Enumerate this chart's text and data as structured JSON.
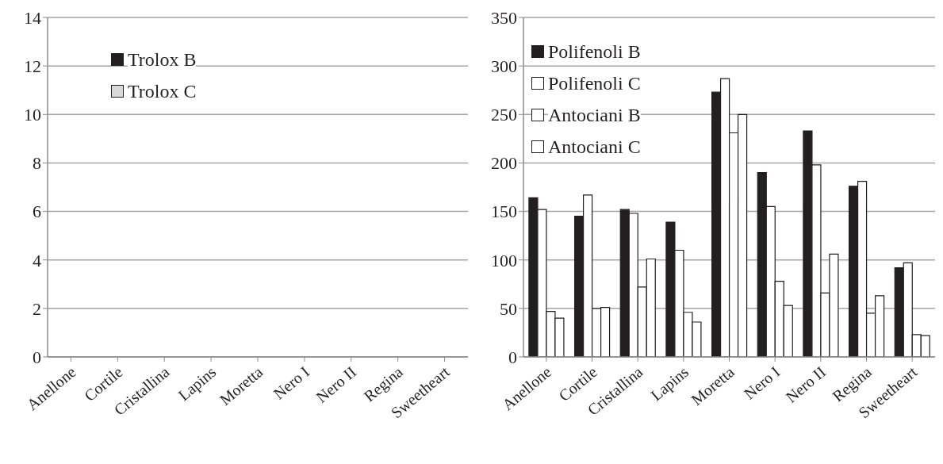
{
  "chart_data": [
    {
      "type": "bar",
      "categories": [
        "Anellone",
        "Cortile",
        "Cristallina",
        "Lapins",
        "Moretta",
        "Nero I",
        "Nero II",
        "Regina",
        "Sweetheart"
      ],
      "series": [
        {
          "name": "Trolox B",
          "color": "#231f20",
          "values": [
            null,
            null,
            null,
            null,
            null,
            null,
            null,
            null,
            null
          ]
        },
        {
          "name": "Trolox C",
          "color": "#d9d9d9",
          "values": [
            null,
            null,
            null,
            null,
            null,
            null,
            null,
            null,
            null
          ]
        }
      ],
      "ylim": [
        0,
        14
      ],
      "yticks": [
        0,
        2,
        4,
        6,
        8,
        10,
        12,
        14
      ],
      "grid": "y",
      "legend": "top left"
    },
    {
      "type": "bar",
      "categories": [
        "Anellone",
        "Cortile",
        "Cristallina",
        "Lapins",
        "Moretta",
        "Nero I",
        "Nero II",
        "Regina",
        "Sweetheart"
      ],
      "series": [
        {
          "name": "Polifenoli B",
          "color": "#231f20",
          "values": [
            164,
            145,
            152,
            139,
            273,
            190,
            233,
            176,
            92
          ]
        },
        {
          "name": "Polifenoli C",
          "color": "#ffffff",
          "values": [
            152,
            167,
            148,
            110,
            287,
            155,
            198,
            181,
            97
          ]
        },
        {
          "name": "Antociani B",
          "color": "#ffffff",
          "values": [
            47,
            50,
            72,
            46,
            231,
            78,
            66,
            45,
            23
          ]
        },
        {
          "name": "Antociani C",
          "color": "#ffffff",
          "values": [
            40,
            51,
            101,
            36,
            250,
            53,
            106,
            63,
            22
          ]
        }
      ],
      "ylim": [
        0,
        350
      ],
      "yticks": [
        0,
        50,
        100,
        150,
        200,
        250,
        300,
        350
      ],
      "grid": "y",
      "legend": "top left"
    }
  ]
}
